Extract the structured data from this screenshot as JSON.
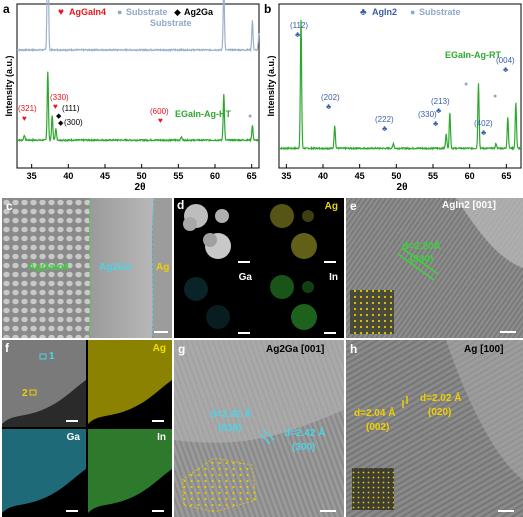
{
  "chart_data": [
    {
      "type": "line",
      "panel": "a",
      "xlabel": "2θ",
      "ylabel": "Intensity (a.u.)",
      "xlim": [
        33,
        66
      ],
      "x_ticks": [
        "35",
        "40",
        "45",
        "50",
        "55",
        "60",
        "65"
      ],
      "x_tick_values": [
        35,
        40,
        45,
        50,
        55,
        60,
        65
      ],
      "legend": [
        {
          "symbol": "♥",
          "label": "AgGaIn4",
          "color": "#e8141e"
        },
        {
          "symbol": "●",
          "label": "Substrate",
          "color": "#8fa8c8"
        },
        {
          "symbol": "◆",
          "label": "Ag2Ga",
          "color": "#000000"
        }
      ],
      "series": [
        {
          "name": "Substrate",
          "color": "#9bb2cc",
          "baseline": 0.72,
          "peaks": [
            [
              37.2,
              0.95
            ],
            [
              61.2,
              0.4
            ],
            [
              65.1,
              0.18
            ],
            [
              66.0,
              0.1
            ]
          ]
        },
        {
          "name": "EGaIn-Ag-HT",
          "color": "#2ea82e",
          "baseline": 0.17,
          "peaks": [
            [
              34.0,
              0.03
            ],
            [
              37.2,
              0.42
            ],
            [
              37.8,
              0.15
            ],
            [
              38.3,
              0.07
            ],
            [
              55.4,
              0.02
            ],
            [
              61.2,
              0.28
            ],
            [
              65.1,
              0.09
            ]
          ]
        }
      ],
      "labels": {
        "substrate": "Substrate",
        "sample": "EGaIn-Ag-HT",
        "p321": "(321)",
        "p330": "(330)",
        "p111": "(111)",
        "p300": "(300)",
        "p600": "(600)"
      }
    },
    {
      "type": "line",
      "panel": "b",
      "xlabel": "2θ",
      "ylabel": "Intensity (a.u.)",
      "xlim": [
        34,
        67
      ],
      "x_ticks": [
        "35",
        "40",
        "45",
        "50",
        "55",
        "60",
        "65"
      ],
      "x_tick_values": [
        35,
        40,
        45,
        50,
        55,
        60,
        65
      ],
      "legend": [
        {
          "symbol": "♣",
          "label": "AgIn2",
          "color": "#3a5ea8"
        },
        {
          "symbol": "●",
          "label": "Substrate",
          "color": "#8fa8c8"
        }
      ],
      "series": [
        {
          "name": "EGaIn-Ag-RT",
          "color": "#2ea82e",
          "baseline": 0.12,
          "peaks": [
            [
              37.0,
              0.78
            ],
            [
              41.6,
              0.14
            ],
            [
              49.6,
              0.03
            ],
            [
              56.8,
              0.09
            ],
            [
              57.3,
              0.22
            ],
            [
              61.2,
              0.4
            ],
            [
              63.6,
              0.03
            ],
            [
              65.2,
              0.19
            ],
            [
              66.3,
              0.28
            ]
          ]
        }
      ],
      "labels": {
        "sample": "EGaIn-Ag-RT",
        "p112": "(112)",
        "p202": "(202)",
        "p222": "(222)",
        "p330": "(330)",
        "p213": "(213)",
        "p402": "(402)",
        "p004": "(004)"
      }
    }
  ],
  "panels": {
    "a": "a",
    "b": "b",
    "c": "c",
    "d": "d",
    "e": "e",
    "f": "f",
    "g": "g",
    "h": "h"
  },
  "panel_c": {
    "region1": "AgGaIn4",
    "region2": "Ag2Ga",
    "region3": "Ag",
    "region1_color": "#3ad43a",
    "region2_color": "#4dd4e6",
    "region3_color": "#f0d000"
  },
  "panel_d": {
    "ag": "Ag",
    "ga": "Ga",
    "in": "In"
  },
  "panel_e": {
    "title": "AgIn2 [001]",
    "dspacing": "d=2.20Å",
    "plane": "(330)"
  },
  "panel_f": {
    "ag": "Ag",
    "ga": "Ga",
    "in": "In",
    "marker1": "1",
    "marker2": "2"
  },
  "panel_g": {
    "title": "Ag2Ga [001]",
    "d1": "d=2.42 Å",
    "plane1": "(030)",
    "d2": "d=2.42 Å",
    "plane2": "(300)"
  },
  "panel_h": {
    "title": "Ag [100]",
    "d1": "d=2.04 Å",
    "plane1": "(002)",
    "d2": "d=2.02 Å",
    "plane2": "(020)"
  }
}
